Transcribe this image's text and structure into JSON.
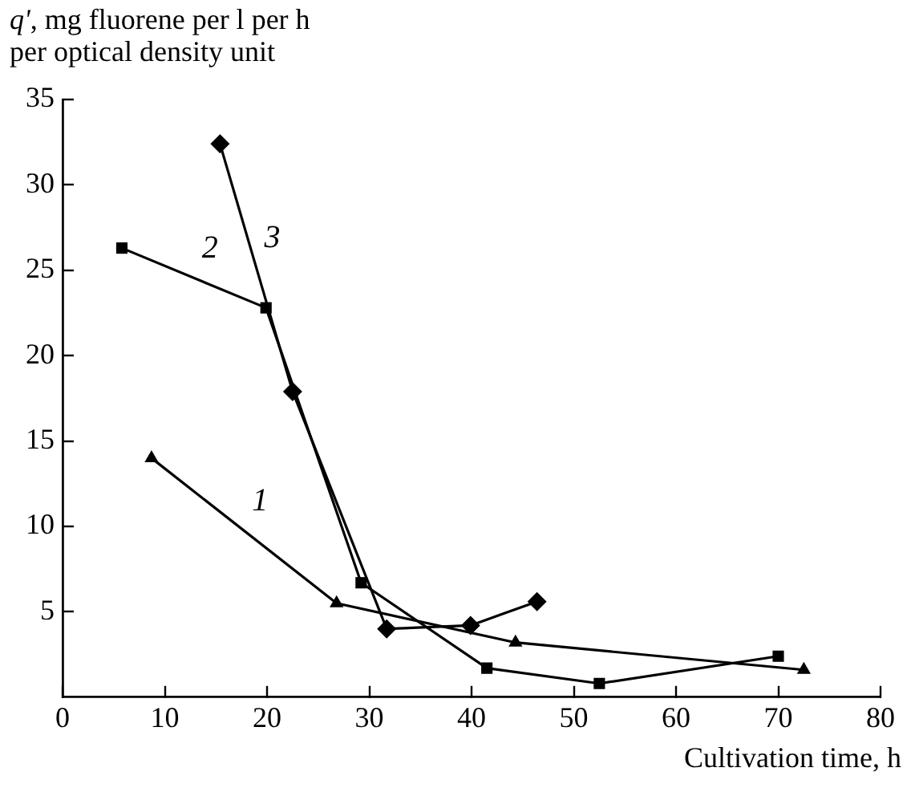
{
  "chart_data": {
    "type": "line",
    "ylabel": "q', mg fluorene per l per h per optical density unit",
    "xlabel": "Cultivation time, h",
    "xlim": [
      0,
      80
    ],
    "xticks": [
      0,
      10,
      20,
      30,
      40,
      50,
      60,
      70,
      80
    ],
    "ylim": [
      0,
      35
    ],
    "yticks": [
      5,
      10,
      15,
      20,
      25,
      30,
      35
    ],
    "grid": false,
    "legend": false,
    "series": [
      {
        "color": "#000000",
        "marker": "triangle",
        "x": [
          8.7,
          26.8,
          44.3,
          72.5
        ],
        "values": [
          14,
          5.5,
          3.2,
          1.6
        ]
      },
      {
        "color": "#000000",
        "marker": "square",
        "x": [
          5.8,
          19.9,
          29.2,
          41.5,
          52.5,
          70
        ],
        "values": [
          26.3,
          22.8,
          6.7,
          1.7,
          0.8,
          2.4
        ]
      },
      {
        "color": "#000000",
        "marker": "diamond",
        "x": [
          15.4,
          22.5,
          31.7,
          39.9,
          46.4
        ],
        "values": [
          32.4,
          17.9,
          4,
          4.2,
          5.6
        ]
      }
    ],
    "annotations": [
      "1",
      "2",
      "3"
    ]
  }
}
